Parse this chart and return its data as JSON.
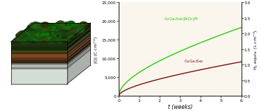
{
  "left_ylabel": "|Q| (C cm$^{-2}$)",
  "right_ylabel": "H$_2$ equiv. (L cm$^{-2}$)",
  "xlabel": "t (weeks)",
  "xlim": [
    0,
    6
  ],
  "ylim_left": [
    0,
    25000
  ],
  "ylim_right": [
    0,
    3.0
  ],
  "yticks_left": [
    0,
    5000,
    10000,
    15000,
    20000,
    25000
  ],
  "ytick_labels_left": [
    "0",
    "5,000",
    "10,000",
    "15,000",
    "20,000",
    "25,000"
  ],
  "yticks_right": [
    0.0,
    0.5,
    1.0,
    1.5,
    2.0,
    2.5,
    3.0
  ],
  "xticks": [
    0,
    1,
    2,
    3,
    4,
    5,
    6
  ],
  "green_label": "CuGa$_2$Se$_2$|WO$_3$|Pt",
  "red_label": "CuGa$_2$Se$_2$",
  "green_color": "#22cc00",
  "red_color": "#7a0a0a",
  "fig_bg": "#ffffff",
  "chart_bg": "#faf6ee"
}
